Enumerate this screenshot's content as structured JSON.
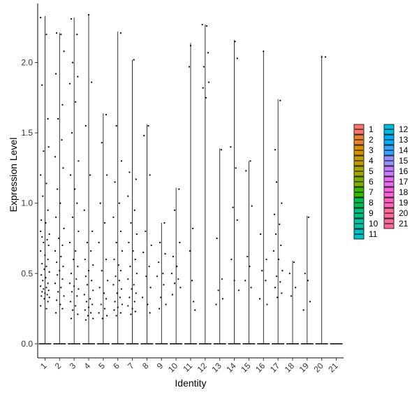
{
  "chart_data": {
    "type": "scatter",
    "subtype": "violin-jitter",
    "xlabel": "Identity",
    "ylabel": "Expression Level",
    "categories": [
      "1",
      "2",
      "3",
      "4",
      "5",
      "6",
      "7",
      "8",
      "9",
      "10",
      "11",
      "12",
      "13",
      "14",
      "15",
      "16",
      "17",
      "18",
      "19",
      "20",
      "21"
    ],
    "yticks": [
      0.0,
      0.5,
      1.0,
      1.5,
      2.0
    ],
    "ytick_labels": [
      "0.0",
      "0.5",
      "1.0",
      "1.5",
      "2.0"
    ],
    "ylim": [
      -0.1,
      2.42
    ],
    "max_values": [
      2.33,
      2.21,
      2.32,
      2.34,
      1.64,
      2.22,
      2.02,
      1.56,
      0.86,
      1.11,
      2.14,
      2.27,
      1.39,
      2.16,
      1.3,
      2.08,
      1.74,
      0.59,
      0.91,
      2.05,
      0.0
    ],
    "points": [
      [
        [
          -0.3,
          2.32
        ],
        [
          0.1,
          2.2
        ],
        [
          -0.2,
          1.84
        ],
        [
          0.2,
          1.6
        ],
        [
          -0.1,
          1.37
        ],
        [
          0.25,
          1.4
        ],
        [
          -0.3,
          1.2
        ],
        [
          0.1,
          1.14
        ],
        [
          -0.15,
          1.05
        ],
        [
          0.2,
          0.95
        ],
        [
          -0.25,
          0.88
        ],
        [
          0.05,
          0.86
        ],
        [
          -0.3,
          0.8
        ],
        [
          0.3,
          0.78
        ],
        [
          -0.2,
          0.76
        ],
        [
          0.15,
          0.74
        ],
        [
          -0.1,
          0.72
        ],
        [
          0.25,
          0.7
        ],
        [
          -0.3,
          0.66
        ],
        [
          0.0,
          0.63
        ],
        [
          0.2,
          0.6
        ],
        [
          -0.2,
          0.57
        ],
        [
          0.1,
          0.55
        ],
        [
          -0.05,
          0.53
        ],
        [
          0.3,
          0.51
        ],
        [
          -0.25,
          0.49
        ],
        [
          0.05,
          0.47
        ],
        [
          -0.15,
          0.45
        ],
        [
          0.2,
          0.43
        ],
        [
          -0.3,
          0.41
        ],
        [
          0.1,
          0.4
        ],
        [
          -0.1,
          0.39
        ],
        [
          0.25,
          0.38
        ],
        [
          -0.2,
          0.37
        ],
        [
          0.0,
          0.36
        ],
        [
          0.15,
          0.35
        ],
        [
          -0.25,
          0.34
        ],
        [
          0.3,
          0.33
        ],
        [
          -0.05,
          0.32
        ],
        [
          0.2,
          0.3
        ],
        [
          -0.3,
          0.27
        ],
        [
          0.1,
          0.25
        ]
      ],
      [
        [
          -0.2,
          2.21
        ],
        [
          0.1,
          2.2
        ],
        [
          0.3,
          2.08
        ],
        [
          -0.25,
          1.92
        ],
        [
          0.2,
          1.7
        ],
        [
          -0.1,
          1.6
        ],
        [
          0.15,
          1.45
        ],
        [
          -0.3,
          1.33
        ],
        [
          0.25,
          1.25
        ],
        [
          -0.15,
          1.1
        ],
        [
          0.05,
          1.0
        ],
        [
          -0.25,
          0.9
        ],
        [
          0.3,
          0.82
        ],
        [
          -0.05,
          0.75
        ],
        [
          0.2,
          0.7
        ],
        [
          -0.3,
          0.66
        ],
        [
          0.1,
          0.62
        ],
        [
          -0.2,
          0.58
        ],
        [
          0.25,
          0.55
        ],
        [
          0.0,
          0.52
        ],
        [
          -0.15,
          0.49
        ],
        [
          0.2,
          0.46
        ],
        [
          -0.3,
          0.43
        ],
        [
          0.1,
          0.4
        ],
        [
          -0.1,
          0.37
        ],
        [
          0.3,
          0.34
        ],
        [
          -0.2,
          0.31
        ],
        [
          0.05,
          0.28
        ],
        [
          0.2,
          0.25
        ],
        [
          -0.25,
          0.22
        ]
      ],
      [
        [
          -0.2,
          2.31
        ],
        [
          0.2,
          2.2
        ],
        [
          -0.1,
          2.0
        ],
        [
          0.25,
          1.9
        ],
        [
          -0.3,
          1.85
        ],
        [
          0.1,
          1.72
        ],
        [
          -0.15,
          1.5
        ],
        [
          0.3,
          1.3
        ],
        [
          -0.25,
          1.2
        ],
        [
          0.05,
          1.1
        ],
        [
          0.2,
          1.0
        ],
        [
          -0.1,
          0.9
        ],
        [
          0.3,
          0.8
        ],
        [
          -0.3,
          0.72
        ],
        [
          0.1,
          0.66
        ],
        [
          -0.05,
          0.6
        ],
        [
          0.25,
          0.55
        ],
        [
          -0.2,
          0.5
        ],
        [
          0.15,
          0.46
        ],
        [
          -0.3,
          0.43
        ],
        [
          0.0,
          0.41
        ],
        [
          0.3,
          0.39
        ],
        [
          -0.15,
          0.37
        ],
        [
          0.2,
          0.34
        ],
        [
          -0.25,
          0.3
        ],
        [
          0.1,
          0.27
        ],
        [
          -0.1,
          0.24
        ],
        [
          0.25,
          0.21
        ],
        [
          -0.2,
          0.18
        ]
      ],
      [
        [
          0.0,
          2.34
        ],
        [
          0.2,
          1.86
        ],
        [
          -0.2,
          1.55
        ],
        [
          0.1,
          1.2
        ],
        [
          -0.3,
          0.95
        ],
        [
          0.25,
          0.8
        ],
        [
          -0.1,
          0.72
        ],
        [
          0.15,
          0.66
        ],
        [
          -0.25,
          0.6
        ],
        [
          0.3,
          0.56
        ],
        [
          0.0,
          0.52
        ],
        [
          -0.2,
          0.48
        ],
        [
          0.2,
          0.45
        ],
        [
          -0.1,
          0.42
        ],
        [
          0.3,
          0.38
        ],
        [
          -0.3,
          0.35
        ],
        [
          0.1,
          0.32
        ],
        [
          -0.15,
          0.3
        ],
        [
          0.25,
          0.28
        ],
        [
          0.0,
          0.26
        ],
        [
          -0.25,
          0.24
        ],
        [
          0.15,
          0.22
        ],
        [
          -0.05,
          0.2
        ],
        [
          0.3,
          0.18
        ],
        [
          -0.2,
          0.17
        ]
      ],
      [
        [
          0.2,
          1.63
        ],
        [
          -0.1,
          1.43
        ],
        [
          0.25,
          1.2
        ],
        [
          -0.2,
          1.0
        ],
        [
          0.1,
          0.86
        ],
        [
          -0.3,
          0.72
        ],
        [
          0.2,
          0.6
        ],
        [
          -0.1,
          0.52
        ],
        [
          0.3,
          0.45
        ],
        [
          -0.25,
          0.4
        ],
        [
          0.05,
          0.36
        ],
        [
          0.2,
          0.32
        ],
        [
          -0.15,
          0.28
        ],
        [
          0.1,
          0.25
        ],
        [
          -0.3,
          0.22
        ],
        [
          0.25,
          0.2
        ],
        [
          -0.05,
          0.18
        ]
      ],
      [
        [
          0.2,
          2.21
        ],
        [
          -0.1,
          1.55
        ],
        [
          0.25,
          1.3
        ],
        [
          -0.2,
          1.15
        ],
        [
          0.1,
          1.0
        ],
        [
          -0.3,
          0.9
        ],
        [
          0.2,
          0.8
        ],
        [
          -0.1,
          0.72
        ],
        [
          0.3,
          0.66
        ],
        [
          -0.25,
          0.6
        ],
        [
          0.05,
          0.56
        ],
        [
          0.2,
          0.52
        ],
        [
          -0.15,
          0.48
        ],
        [
          0.1,
          0.45
        ],
        [
          -0.3,
          0.42
        ],
        [
          0.25,
          0.39
        ],
        [
          -0.05,
          0.36
        ],
        [
          0.15,
          0.33
        ],
        [
          -0.2,
          0.3
        ],
        [
          0.3,
          0.28
        ],
        [
          0.0,
          0.26
        ],
        [
          -0.25,
          0.24
        ],
        [
          0.2,
          0.22
        ],
        [
          -0.1,
          0.2
        ]
      ],
      [
        [
          0.1,
          2.02
        ],
        [
          -0.2,
          1.22
        ],
        [
          0.25,
          1.17
        ],
        [
          -0.3,
          1.05
        ],
        [
          0.15,
          0.95
        ],
        [
          -0.1,
          0.86
        ],
        [
          0.3,
          0.78
        ],
        [
          -0.25,
          0.72
        ],
        [
          0.05,
          0.66
        ],
        [
          0.2,
          0.6
        ],
        [
          -0.15,
          0.55
        ],
        [
          0.3,
          0.5
        ],
        [
          -0.3,
          0.46
        ],
        [
          0.1,
          0.42
        ],
        [
          -0.05,
          0.39
        ],
        [
          0.25,
          0.36
        ],
        [
          -0.2,
          0.33
        ],
        [
          0.15,
          0.3
        ],
        [
          -0.3,
          0.27
        ],
        [
          0.0,
          0.25
        ],
        [
          0.2,
          0.23
        ],
        [
          -0.1,
          0.21
        ]
      ],
      [
        [
          0.1,
          1.55
        ],
        [
          -0.2,
          1.48
        ],
        [
          0.2,
          1.2
        ],
        [
          -0.1,
          0.8
        ],
        [
          0.3,
          0.7
        ],
        [
          -0.25,
          0.65
        ],
        [
          0.15,
          0.55
        ],
        [
          -0.05,
          0.48
        ],
        [
          0.25,
          0.4
        ],
        [
          -0.3,
          0.33
        ],
        [
          0.05,
          0.28
        ],
        [
          0.2,
          0.22
        ]
      ],
      [
        [
          0.2,
          0.86
        ],
        [
          -0.1,
          0.72
        ],
        [
          0.25,
          0.64
        ],
        [
          -0.2,
          0.58
        ],
        [
          0.1,
          0.5
        ],
        [
          -0.3,
          0.48
        ],
        [
          0.15,
          0.42
        ],
        [
          -0.05,
          0.33
        ],
        [
          0.3,
          0.28
        ],
        [
          -0.15,
          0.25
        ]
      ],
      [
        [
          0.2,
          1.1
        ],
        [
          -0.1,
          0.95
        ],
        [
          0.25,
          0.72
        ],
        [
          -0.2,
          0.62
        ],
        [
          0.05,
          0.55
        ],
        [
          -0.3,
          0.5
        ],
        [
          0.15,
          0.46
        ],
        [
          -0.1,
          0.43
        ],
        [
          0.3,
          0.4
        ],
        [
          -0.25,
          0.35
        ]
      ],
      [
        [
          0.0,
          2.12
        ],
        [
          -0.1,
          1.97
        ],
        [
          0.15,
          0.82
        ],
        [
          -0.05,
          0.66
        ],
        [
          0.1,
          0.45
        ],
        [
          0.2,
          0.3
        ],
        [
          0.3,
          0.24
        ]
      ],
      [
        [
          -0.2,
          2.27
        ],
        [
          0.1,
          2.26
        ],
        [
          0.2,
          2.07
        ],
        [
          -0.1,
          1.97
        ],
        [
          0.25,
          1.86
        ],
        [
          -0.15,
          1.82
        ],
        [
          0.05,
          1.75
        ]
      ],
      [
        [
          0.1,
          1.38
        ],
        [
          -0.2,
          0.75
        ],
        [
          0.15,
          0.46
        ],
        [
          -0.1,
          0.38
        ],
        [
          0.2,
          0.32
        ],
        [
          -0.25,
          0.28
        ]
      ],
      [
        [
          0.05,
          2.15
        ],
        [
          0.2,
          2.03
        ],
        [
          -0.25,
          1.4
        ],
        [
          0.1,
          1.25
        ],
        [
          -0.1,
          0.97
        ],
        [
          0.2,
          0.88
        ],
        [
          -0.2,
          0.6
        ],
        [
          0.0,
          0.45
        ],
        [
          0.3,
          0.38
        ]
      ],
      [
        [
          0.1,
          1.3
        ],
        [
          -0.2,
          1.23
        ],
        [
          0.2,
          0.98
        ],
        [
          -0.1,
          0.62
        ],
        [
          0.05,
          0.55
        ],
        [
          -0.25,
          0.45
        ],
        [
          0.15,
          0.4
        ]
      ],
      [
        [
          0.0,
          2.08
        ],
        [
          -0.2,
          0.78
        ],
        [
          0.2,
          0.6
        ],
        [
          -0.1,
          0.52
        ],
        [
          0.15,
          0.45
        ],
        [
          -0.25,
          0.32
        ],
        [
          0.25,
          0.28
        ]
      ],
      [
        [
          -0.2,
          1.38
        ],
        [
          0.15,
          1.73
        ],
        [
          -0.1,
          1.15
        ],
        [
          0.25,
          1.0
        ],
        [
          -0.25,
          0.92
        ],
        [
          0.1,
          0.85
        ],
        [
          -0.15,
          0.78
        ],
        [
          0.2,
          0.7
        ],
        [
          -0.3,
          0.66
        ],
        [
          0.05,
          0.6
        ],
        [
          0.3,
          0.52
        ],
        [
          -0.1,
          0.48
        ],
        [
          0.15,
          0.44
        ],
        [
          -0.2,
          0.4
        ],
        [
          0.25,
          0.36
        ],
        [
          -0.05,
          0.33
        ]
      ],
      [
        [
          0.1,
          0.58
        ],
        [
          -0.2,
          0.5
        ],
        [
          0.2,
          0.4
        ],
        [
          -0.1,
          0.34
        ]
      ],
      [
        [
          0.1,
          0.9
        ],
        [
          -0.15,
          0.5
        ],
        [
          0.05,
          0.45
        ],
        [
          -0.25,
          0.24
        ],
        [
          0.2,
          0.3
        ]
      ],
      [
        [
          0.0,
          2.04
        ],
        [
          0.25,
          2.04
        ]
      ],
      []
    ],
    "legend": {
      "placement": "right",
      "columns": 2,
      "entries": [
        "1",
        "2",
        "3",
        "4",
        "5",
        "6",
        "7",
        "8",
        "9",
        "10",
        "11",
        "12",
        "13",
        "14",
        "15",
        "16",
        "17",
        "18",
        "19",
        "20",
        "21"
      ],
      "colors": [
        "#F8766D",
        "#EA8331",
        "#D89000",
        "#C09B00",
        "#A3A500",
        "#7CAE00",
        "#39B600",
        "#00BB4E",
        "#00BF7D",
        "#00C1A3",
        "#00BFC4",
        "#00BAE0",
        "#00B0F6",
        "#35A2FF",
        "#9590FF",
        "#C77CFF",
        "#E76BF3",
        "#FA62DB",
        "#FF62BC",
        "#FF6A98",
        "#F7699A"
      ]
    },
    "grid": false
  }
}
